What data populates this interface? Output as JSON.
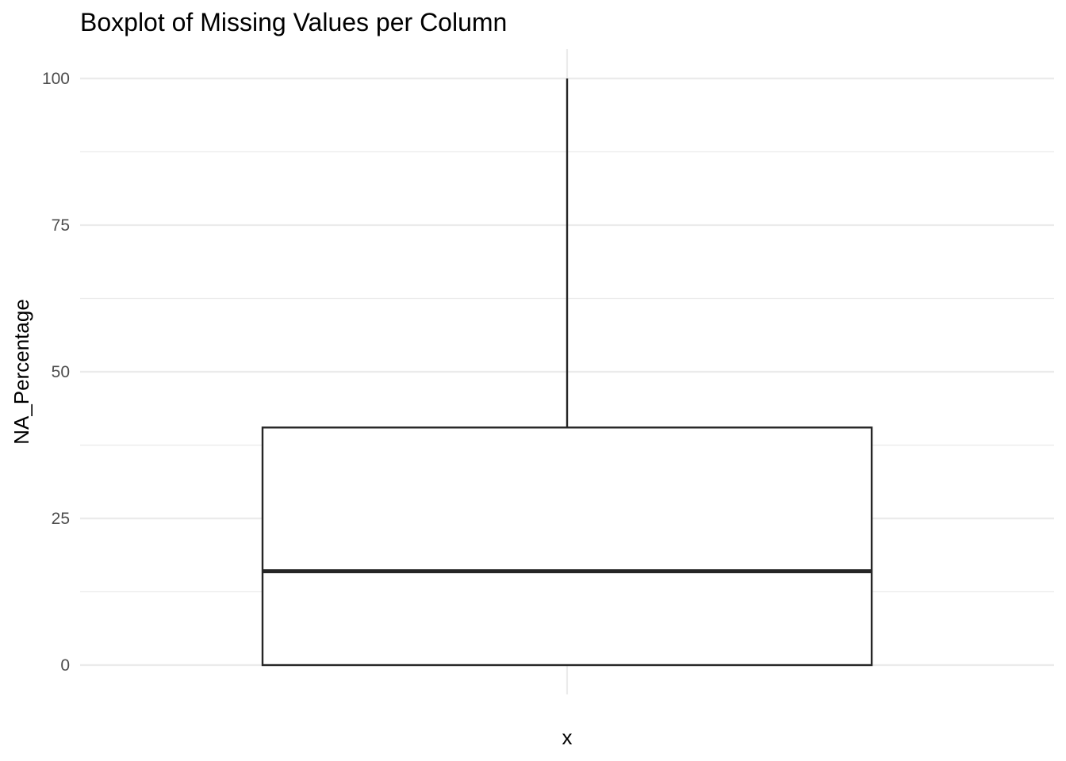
{
  "chart_data": {
    "type": "boxplot",
    "title": "Boxplot of Missing Values per Column",
    "xlabel": "x",
    "ylabel": "NA_Percentage",
    "ylim": [
      -5,
      105
    ],
    "y_ticks": [
      0,
      25,
      50,
      75,
      100
    ],
    "y_minor_ticks": [
      12.5,
      37.5,
      62.5,
      87.5
    ],
    "x_ticks": [],
    "grid": true,
    "legend": "none",
    "series": [
      {
        "min": 0,
        "q1": 0,
        "median": 16,
        "q3": 40.5,
        "max": 100
      }
    ],
    "colors": {
      "box_fill": "#ffffff",
      "box_stroke": "#262626",
      "grid": "#ebebeb",
      "tick_text": "#4d4d4d"
    }
  }
}
